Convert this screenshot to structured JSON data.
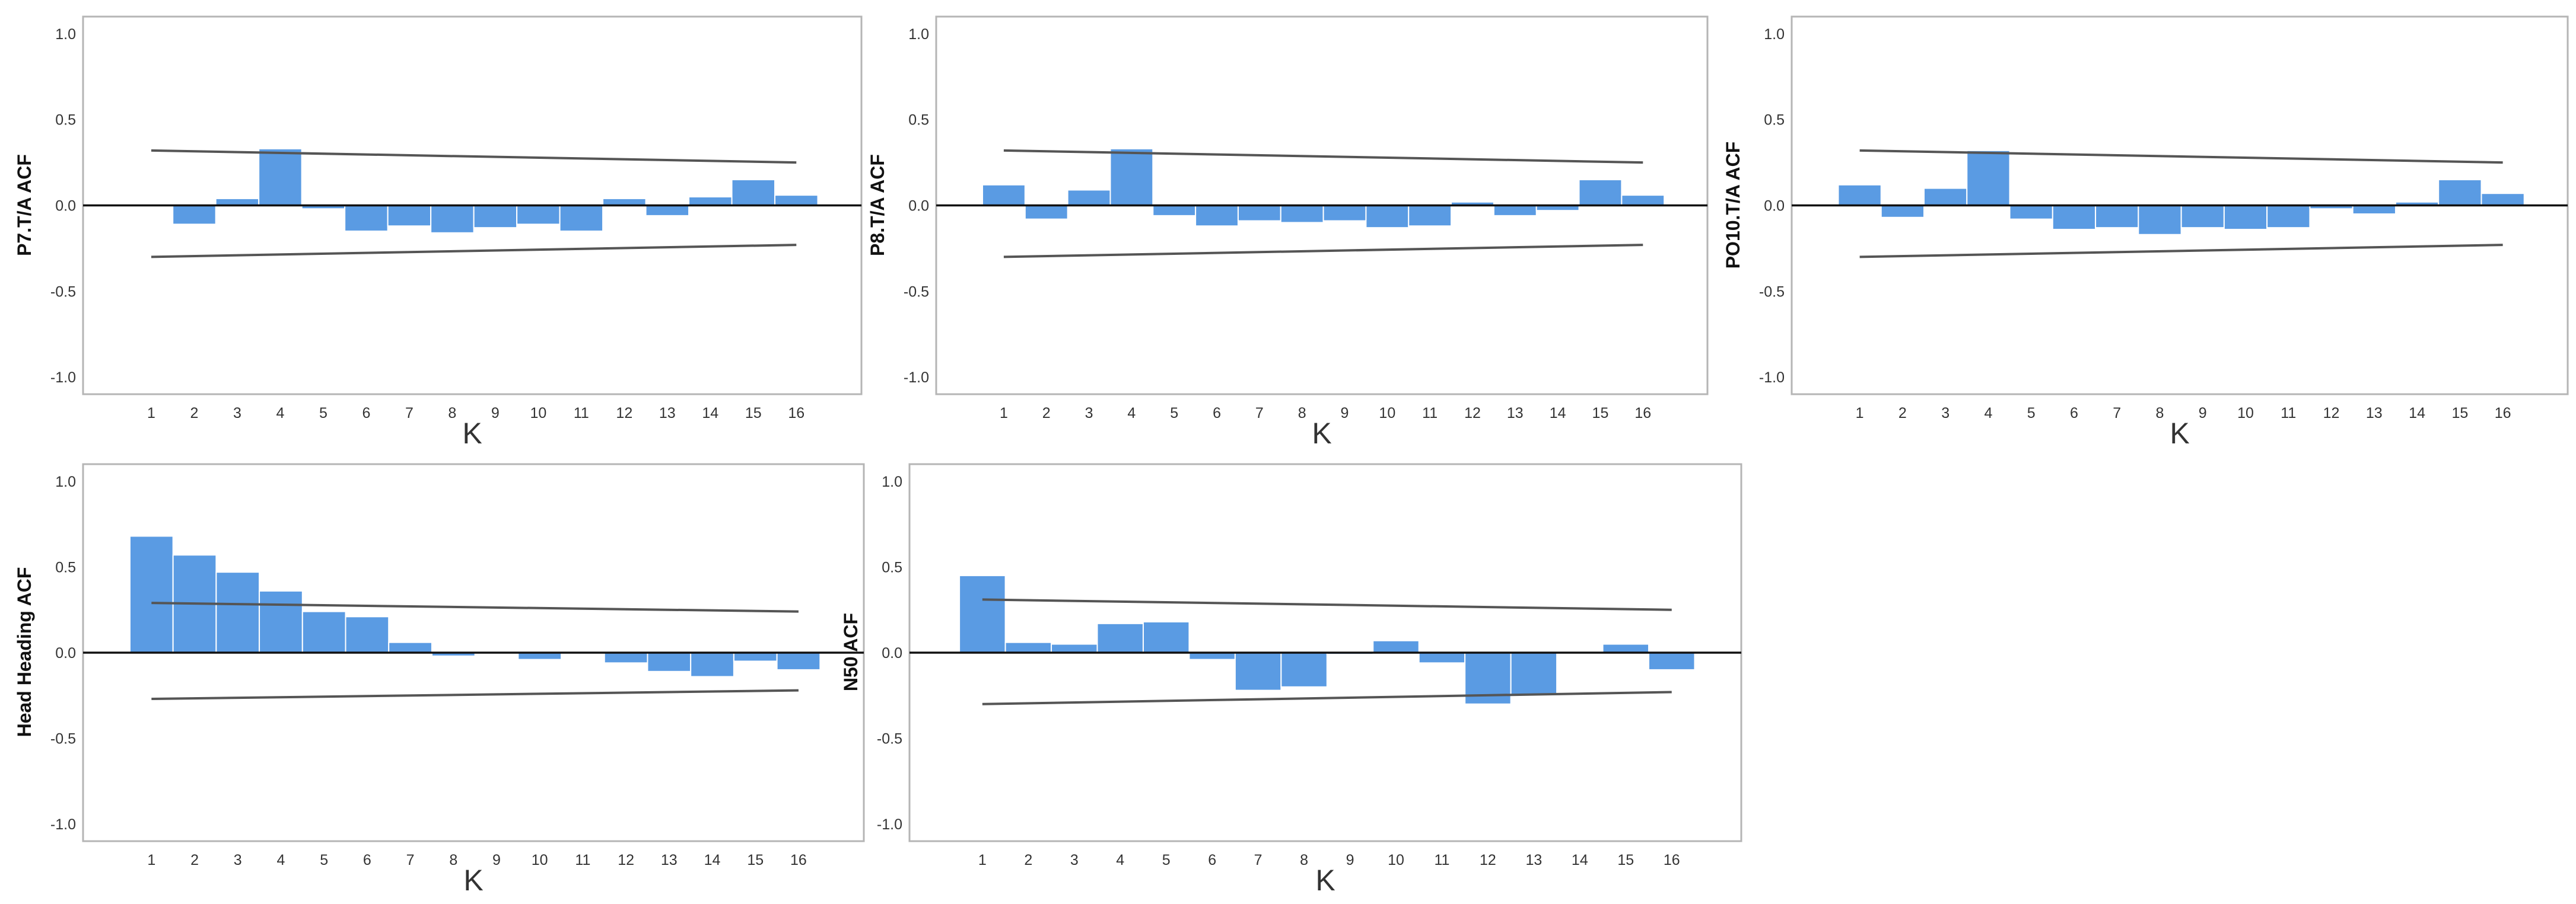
{
  "chart_data": [
    {
      "type": "bar",
      "title": "",
      "ylabel": "P7.T/A ACF",
      "xlabel": "K",
      "ylim": [
        -1.1,
        1.1
      ],
      "yticks": [
        1.0,
        0.5,
        0.0,
        -0.5,
        -1.0
      ],
      "ytick_labels": [
        "1.0",
        "0.5",
        "0.0",
        "-0.5",
        "-1.0"
      ],
      "categories": [
        "1",
        "2",
        "3",
        "4",
        "5",
        "6",
        "7",
        "8",
        "9",
        "10",
        "11",
        "12",
        "13",
        "14",
        "15",
        "16"
      ],
      "values": [
        0.005,
        -0.11,
        0.04,
        0.33,
        -0.02,
        -0.15,
        -0.12,
        -0.16,
        -0.13,
        -0.11,
        -0.15,
        0.04,
        -0.06,
        0.05,
        0.15,
        0.06
      ],
      "upper_conf": [
        0.32,
        0.25
      ],
      "lower_conf": [
        -0.3,
        -0.23
      ]
    },
    {
      "type": "bar",
      "title": "",
      "ylabel": "P8.T/A ACF",
      "xlabel": "K",
      "ylim": [
        -1.1,
        1.1
      ],
      "yticks": [
        1.0,
        0.5,
        0.0,
        -0.5,
        -1.0
      ],
      "ytick_labels": [
        "1.0",
        "0.5",
        "0.0",
        "-0.5",
        "-1.0"
      ],
      "categories": [
        "1",
        "2",
        "3",
        "4",
        "5",
        "6",
        "7",
        "8",
        "9",
        "10",
        "11",
        "12",
        "13",
        "14",
        "15",
        "16"
      ],
      "values": [
        0.12,
        -0.08,
        0.09,
        0.33,
        -0.06,
        -0.12,
        -0.09,
        -0.1,
        -0.09,
        -0.13,
        -0.12,
        0.02,
        -0.06,
        -0.03,
        0.15,
        0.06
      ],
      "upper_conf": [
        0.32,
        0.25
      ],
      "lower_conf": [
        -0.3,
        -0.23
      ]
    },
    {
      "type": "bar",
      "title": "",
      "ylabel": "PO10.T/A ACF",
      "xlabel": "K",
      "ylim": [
        -1.1,
        1.1
      ],
      "yticks": [
        1.0,
        0.5,
        0.0,
        -0.5,
        -1.0
      ],
      "ytick_labels": [
        "1.0",
        "0.5",
        "0.0",
        "-0.5",
        "-1.0"
      ],
      "categories": [
        "1",
        "2",
        "3",
        "4",
        "5",
        "6",
        "7",
        "8",
        "9",
        "10",
        "11",
        "12",
        "13",
        "14",
        "15",
        "16"
      ],
      "values": [
        0.12,
        -0.07,
        0.1,
        0.32,
        -0.08,
        -0.14,
        -0.13,
        -0.17,
        -0.13,
        -0.14,
        -0.13,
        -0.02,
        -0.05,
        0.02,
        0.15,
        0.07
      ],
      "upper_conf": [
        0.32,
        0.25
      ],
      "lower_conf": [
        -0.3,
        -0.23
      ]
    },
    {
      "type": "bar",
      "title": "",
      "ylabel": "Head Heading ACF",
      "xlabel": "K",
      "ylim": [
        -1.1,
        1.1
      ],
      "yticks": [
        1.0,
        0.5,
        0.0,
        -0.5,
        -1.0
      ],
      "ytick_labels": [
        "1.0",
        "0.5",
        "0.0",
        "-0.5",
        "-1.0"
      ],
      "categories": [
        "1",
        "2",
        "3",
        "4",
        "5",
        "6",
        "7",
        "8",
        "9",
        "10",
        "11",
        "12",
        "13",
        "14",
        "15",
        "16"
      ],
      "values": [
        0.68,
        0.57,
        0.47,
        0.36,
        0.24,
        0.21,
        0.06,
        -0.02,
        0.005,
        -0.04,
        0.003,
        -0.06,
        -0.11,
        -0.14,
        -0.05,
        -0.1
      ],
      "upper_conf": [
        0.29,
        0.24
      ],
      "lower_conf": [
        -0.27,
        -0.22
      ]
    },
    {
      "type": "bar",
      "title": "",
      "ylabel": "N50 ACF",
      "xlabel": "K",
      "ylim": [
        -1.1,
        1.1
      ],
      "yticks": [
        1.0,
        0.5,
        0.0,
        -0.5,
        -1.0
      ],
      "ytick_labels": [
        "1.0",
        "0.5",
        "0.0",
        "-0.5",
        "-1.0"
      ],
      "categories": [
        "1",
        "2",
        "3",
        "4",
        "5",
        "6",
        "7",
        "8",
        "9",
        "10",
        "11",
        "12",
        "13",
        "14",
        "15",
        "16"
      ],
      "values": [
        0.45,
        0.06,
        0.05,
        0.17,
        0.18,
        -0.04,
        -0.22,
        -0.2,
        -0.01,
        0.07,
        -0.06,
        -0.3,
        -0.25,
        0.005,
        0.05,
        -0.1
      ],
      "upper_conf": [
        0.31,
        0.25
      ],
      "lower_conf": [
        -0.3,
        -0.23
      ]
    }
  ]
}
